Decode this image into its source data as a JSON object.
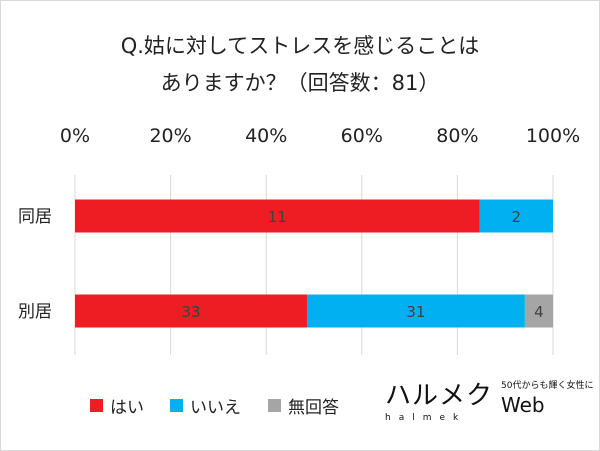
{
  "chart_data": {
    "type": "bar",
    "orientation": "horizontal",
    "stacked": "percent",
    "title_lines": [
      "Q.姑に対してストレスを感じることは",
      "ありますか？（回答数：81）"
    ],
    "categories": [
      "同居",
      "別居"
    ],
    "series": [
      {
        "name": "はい",
        "color": "#ee1d23",
        "values": [
          11,
          33
        ]
      },
      {
        "name": "いいえ",
        "color": "#00b0f0",
        "values": [
          2,
          31
        ]
      },
      {
        "name": "無回答",
        "color": "#a5a5a5",
        "values": [
          0,
          4
        ]
      }
    ],
    "xaxis_ticks": [
      "0%",
      "20%",
      "40%",
      "60%",
      "80%",
      "100%"
    ],
    "xlim": [
      0,
      100
    ],
    "xaxis_position": "top",
    "grid": true,
    "legend_position": "bottom-left"
  },
  "logo": {
    "text": "ハルメク",
    "romaji": "halmek",
    "tagline": "50代からも輝く女性に",
    "web": "Web"
  }
}
